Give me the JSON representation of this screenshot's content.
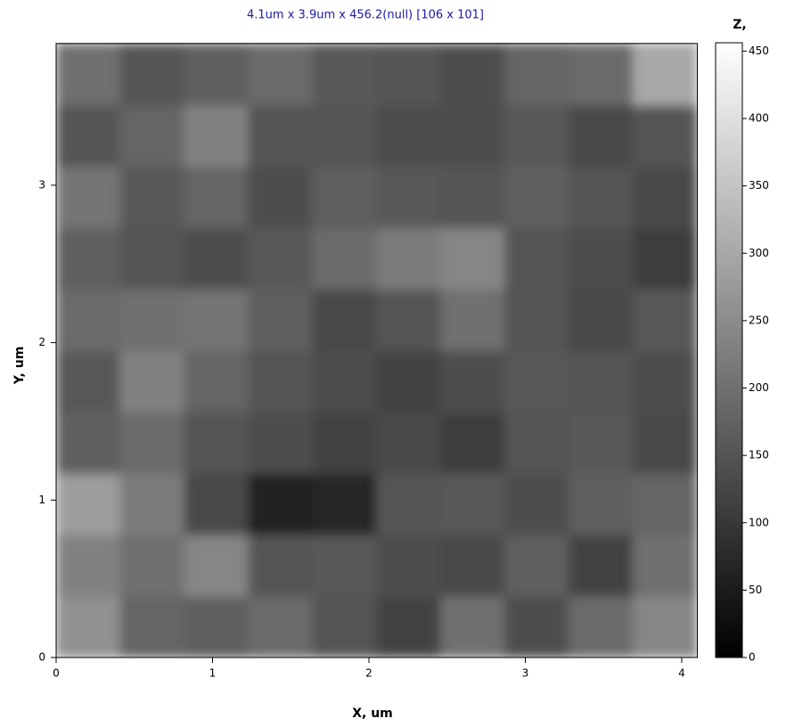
{
  "chart_data": {
    "type": "heatmap",
    "title": "4.1um x 3.9um x 456.2(null) [106 x 101]",
    "x_label": "X, um",
    "y_label": "Y, um",
    "colorbar_label": "Z,",
    "xlim": [
      0,
      4.1
    ],
    "ylim": [
      0,
      3.9
    ],
    "zlim": [
      0,
      456.2
    ],
    "xticks": [
      0,
      1,
      2,
      3,
      4
    ],
    "yticks": [
      0,
      1,
      2,
      3
    ],
    "zticks": [
      0,
      50,
      100,
      150,
      200,
      250,
      300,
      350,
      400,
      450
    ],
    "colormap": "gray",
    "z": [
      [
        260,
        180,
        170,
        190,
        150,
        120,
        200,
        140,
        190,
        240
      ],
      [
        230,
        200,
        240,
        150,
        160,
        140,
        130,
        170,
        120,
        200
      ],
      [
        280,
        220,
        130,
        60,
        70,
        150,
        160,
        140,
        170,
        180
      ],
      [
        170,
        190,
        150,
        140,
        120,
        130,
        110,
        150,
        160,
        130
      ],
      [
        160,
        230,
        180,
        150,
        140,
        120,
        140,
        160,
        150,
        140
      ],
      [
        190,
        200,
        210,
        170,
        130,
        150,
        200,
        150,
        130,
        160
      ],
      [
        170,
        150,
        140,
        160,
        190,
        220,
        240,
        150,
        140,
        110
      ],
      [
        210,
        160,
        180,
        140,
        170,
        160,
        150,
        170,
        150,
        130
      ],
      [
        150,
        180,
        230,
        150,
        150,
        140,
        140,
        160,
        130,
        150
      ],
      [
        200,
        150,
        170,
        190,
        160,
        150,
        140,
        180,
        190,
        300
      ]
    ]
  }
}
